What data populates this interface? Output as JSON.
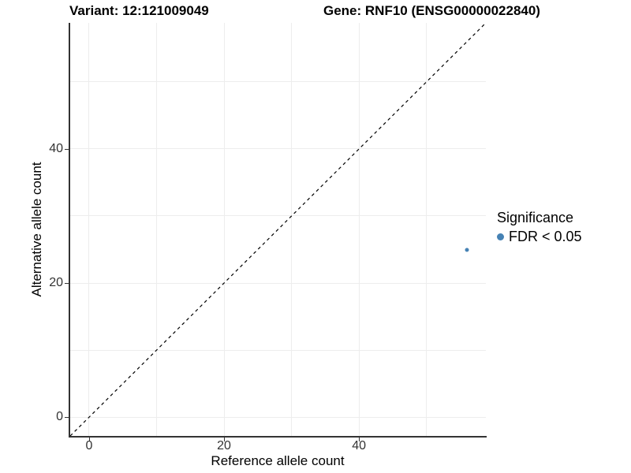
{
  "titles": {
    "variant": "Variant: 12:121009049",
    "gene": "Gene: RNF10 (ENSG00000022840)"
  },
  "legend": {
    "title": "Significance",
    "items": [
      {
        "label": "FDR < 0.05",
        "color": "#4682b4"
      }
    ]
  },
  "colors": {
    "background": "#ffffff",
    "grid": "#ededed",
    "axis_line": "#333333",
    "tick_label": "#333333",
    "title_text": "#000000",
    "point": "#4682b4",
    "reference_line": "#000000"
  },
  "chart_data": {
    "type": "scatter",
    "title": "Variant: 12:121009049 | Gene: RNF10 (ENSG00000022840)",
    "xlabel": "Reference allele count",
    "ylabel": "Alternative allele count",
    "series": [
      {
        "name": "FDR < 0.05",
        "color": "#4682b4",
        "points": [
          {
            "x": 56,
            "y": 25
          }
        ]
      }
    ],
    "xlim": [
      -2.8,
      58.8
    ],
    "ylim": [
      -2.8,
      58.8
    ],
    "xticks": [
      0,
      20,
      40
    ],
    "yticks": [
      0,
      20,
      40
    ],
    "grid_values": [
      0,
      10,
      20,
      30,
      40,
      50
    ],
    "grid": "on",
    "reference_line": {
      "type": "identity y = x",
      "style": "dashed",
      "color": "#000000"
    },
    "legend_position": "right",
    "legend_title": "Significance"
  }
}
